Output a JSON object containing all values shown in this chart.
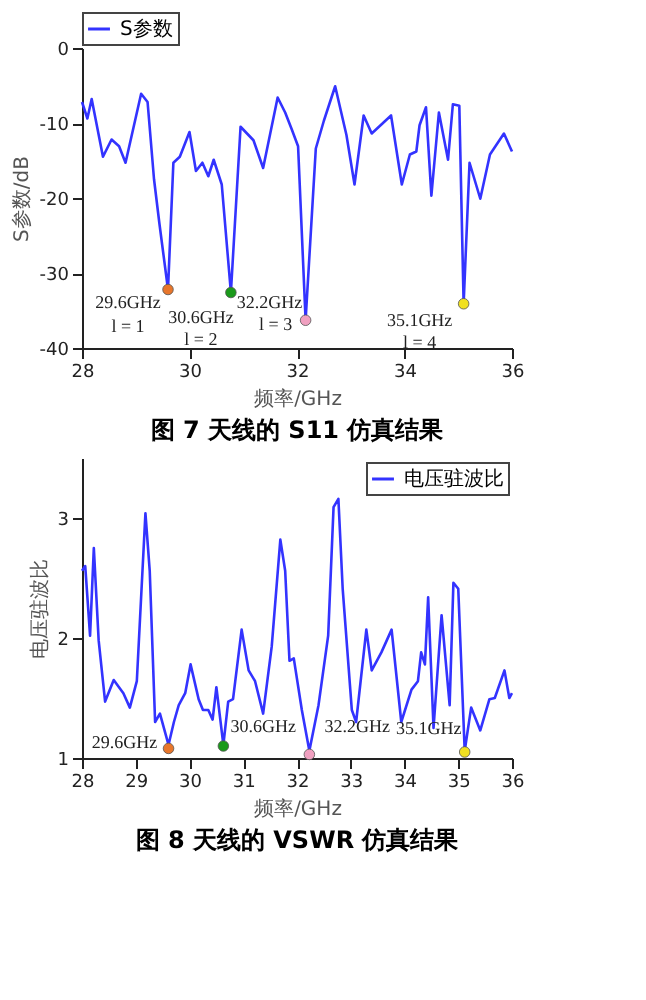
{
  "chart_data": [
    {
      "type": "line",
      "title": "图 7 天线的 S11 仿真结果",
      "xlabel": "频率/GHz",
      "ylabel": "S参数/dB",
      "xlim": [
        28,
        36
      ],
      "xticks": [
        28,
        30,
        32,
        34,
        36
      ],
      "ylim": [
        -40,
        0
      ],
      "yticks": [
        -40,
        -30,
        -20,
        -10,
        0
      ],
      "grid": false,
      "legend": "top",
      "marker": "none",
      "line_style": "solid",
      "series": [
        {
          "name": "S参数",
          "color": "#3333ff",
          "x": [
            28.0,
            28.1,
            28.18,
            28.39,
            28.55,
            28.69,
            28.81,
            29.1,
            29.22,
            29.34,
            29.44,
            29.6,
            29.7,
            29.82,
            30.0,
            30.12,
            30.24,
            30.35,
            30.45,
            30.6,
            30.77,
            30.95,
            31.19,
            31.37,
            31.64,
            31.78,
            31.9,
            32.02,
            32.16,
            32.35,
            32.5,
            32.71,
            32.92,
            33.07,
            33.24,
            33.39,
            33.75,
            33.95,
            34.1,
            34.22,
            34.28,
            34.4,
            34.5,
            34.64,
            34.81,
            34.9,
            35.02,
            35.1,
            35.21,
            35.41,
            35.59,
            35.85,
            36.0
          ],
          "values": [
            -7.2,
            -9.4,
            -6.8,
            -14.5,
            -12.2,
            -13.1,
            -15.3,
            -6.1,
            -7.2,
            -17.5,
            -23.4,
            -32.2,
            -15.3,
            -14.5,
            -11.2,
            -16.4,
            -15.3,
            -17.1,
            -14.9,
            -18.2,
            -32.6,
            -10.5,
            -12.3,
            -16.0,
            -6.6,
            -8.6,
            -10.8,
            -13.1,
            -36.3,
            -13.4,
            -9.7,
            -5.1,
            -11.6,
            -18.2,
            -9.0,
            -11.4,
            -9.0,
            -18.2,
            -14.2,
            -13.8,
            -10.3,
            -7.9,
            -19.7,
            -8.6,
            -14.9,
            -7.5,
            -7.7,
            -34.1,
            -15.3,
            -20.1,
            -14.2,
            -11.4,
            -13.8
          ]
        },
        {
          "type": "scatter",
          "marker": "circle",
          "x": [
            29.6,
            30.77,
            32.16,
            35.1
          ],
          "values": [
            -32.2,
            -32.6,
            -36.3,
            -34.1
          ],
          "colors": [
            "#e8762b",
            "#1a9a1a",
            "#f0a0c0",
            "#f0e020"
          ]
        }
      ],
      "annotations": [
        {
          "text": "29.6GHz",
          "x": 29.6,
          "y": -32.2
        },
        {
          "text": "l = 1",
          "x": 29.6,
          "y": -32.2
        },
        {
          "text": "30.6GHz",
          "x": 30.77,
          "y": -32.6
        },
        {
          "text": "l = 2",
          "x": 30.77,
          "y": -32.6
        },
        {
          "text": "32.2GHz",
          "x": 32.16,
          "y": -36.3
        },
        {
          "text": "l = 3",
          "x": 32.16,
          "y": -36.3
        },
        {
          "text": "35.1GHz",
          "x": 35.1,
          "y": -34.1
        },
        {
          "text": "l = 4",
          "x": 35.1,
          "y": -34.1
        }
      ]
    },
    {
      "type": "line",
      "title": "图 8 天线的 VSWR 仿真结果",
      "xlabel": "频率/GHz",
      "ylabel": "电压驻波比",
      "xlim": [
        28,
        36
      ],
      "xticks": [
        28,
        29,
        30,
        31,
        32,
        33,
        34,
        35,
        36
      ],
      "ylim": [
        1,
        3.5
      ],
      "yticks": [
        1,
        2,
        3
      ],
      "grid": false,
      "legend": "top right",
      "marker": "none",
      "line_style": "solid",
      "series": [
        {
          "name": "电压驻波比",
          "color": "#3333ff",
          "x": [
            28.0,
            28.06,
            28.15,
            28.22,
            28.31,
            28.43,
            28.59,
            28.77,
            28.89,
            29.02,
            29.18,
            29.26,
            29.36,
            29.45,
            29.61,
            29.71,
            29.8,
            29.92,
            30.02,
            30.17,
            30.25,
            30.35,
            30.43,
            30.5,
            30.63,
            30.72,
            30.81,
            30.97,
            31.1,
            31.22,
            31.37,
            31.53,
            31.69,
            31.78,
            31.86,
            31.94,
            32.09,
            32.23,
            32.4,
            32.58,
            32.68,
            32.77,
            32.85,
            33.02,
            33.1,
            33.29,
            33.39,
            33.57,
            33.76,
            33.94,
            34.13,
            34.25,
            34.31,
            34.38,
            34.44,
            34.54,
            34.69,
            34.84,
            34.91,
            35.0,
            35.12,
            35.24,
            35.41,
            35.58,
            35.68,
            35.86,
            35.95,
            36.0
          ],
          "values": [
            2.56,
            2.6,
            2.02,
            2.75,
            1.98,
            1.47,
            1.65,
            1.54,
            1.42,
            1.64,
            3.04,
            2.56,
            1.3,
            1.37,
            1.11,
            1.3,
            1.44,
            1.54,
            1.78,
            1.49,
            1.4,
            1.4,
            1.32,
            1.59,
            1.11,
            1.47,
            1.49,
            2.07,
            1.73,
            1.64,
            1.37,
            1.93,
            2.82,
            2.56,
            1.81,
            1.83,
            1.4,
            1.06,
            1.44,
            2.02,
            3.09,
            3.16,
            2.41,
            1.4,
            1.3,
            2.07,
            1.73,
            1.88,
            2.07,
            1.3,
            1.57,
            1.64,
            1.88,
            1.78,
            2.34,
            1.25,
            2.19,
            1.44,
            2.46,
            2.41,
            1.06,
            1.42,
            1.23,
            1.49,
            1.5,
            1.73,
            1.5,
            1.54
          ]
        },
        {
          "type": "scatter",
          "marker": "circle",
          "x": [
            29.61,
            30.63,
            32.23,
            35.12
          ],
          "values": [
            1.08,
            1.1,
            1.03,
            1.05
          ],
          "colors": [
            "#e8762b",
            "#1a9a1a",
            "#f0a0c0",
            "#f0e020"
          ]
        }
      ],
      "annotations": [
        {
          "text": "29.6GHz",
          "x": 29.61,
          "y": 1.08
        },
        {
          "text": "30.6GHz",
          "x": 30.63,
          "y": 1.1
        },
        {
          "text": "32.2GHz",
          "x": 32.23,
          "y": 1.03
        },
        {
          "text": "35.1GHz",
          "x": 35.12,
          "y": 1.05
        }
      ]
    }
  ]
}
